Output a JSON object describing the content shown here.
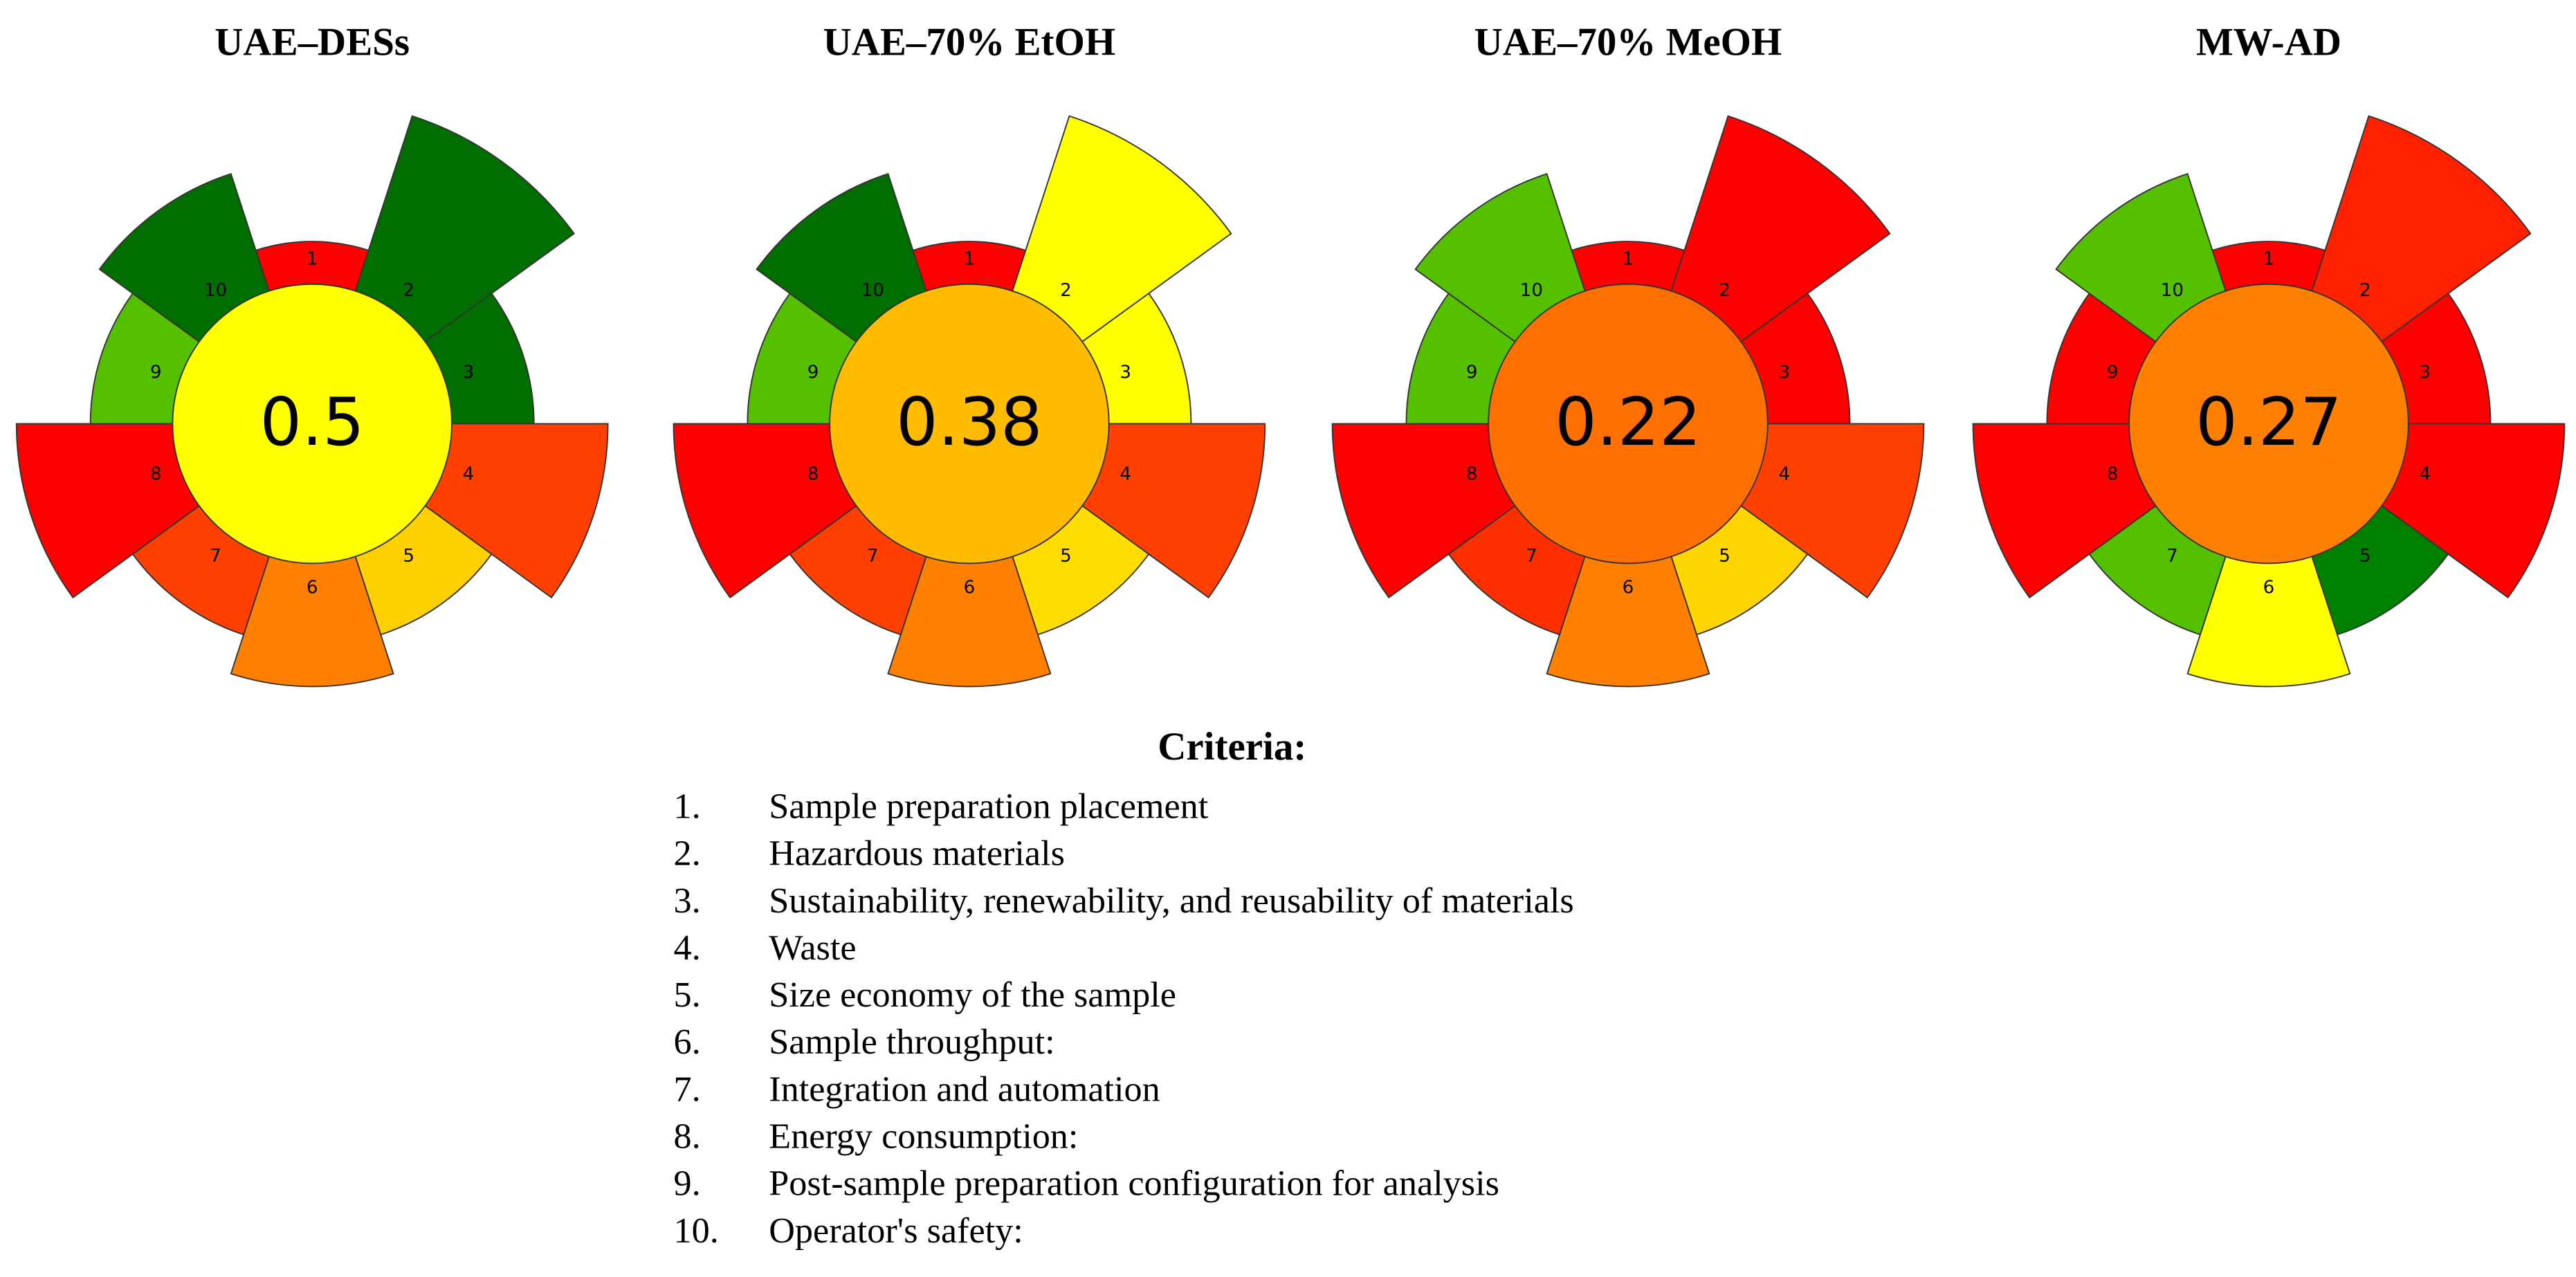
{
  "panels": [
    {
      "title": "UAE–DESs",
      "score": 0.5,
      "center_color": "#ffff00",
      "segments": [
        {
          "label": "1",
          "color": "#ff0000"
        },
        {
          "label": "2",
          "color": "#006e00"
        },
        {
          "label": "3",
          "color": "#006e00"
        },
        {
          "label": "4",
          "color": "#ff4000"
        },
        {
          "label": "5",
          "color": "#ffd000"
        },
        {
          "label": "6",
          "color": "#ff8000"
        },
        {
          "label": "7",
          "color": "#ff4000"
        },
        {
          "label": "8",
          "color": "#ff0000"
        },
        {
          "label": "9",
          "color": "#55c000"
        },
        {
          "label": "10",
          "color": "#006e00"
        }
      ]
    },
    {
      "title": "UAE–70% EtOH",
      "score": 0.38,
      "center_color": "#ffbb00",
      "segments": [
        {
          "label": "1",
          "color": "#ff0000"
        },
        {
          "label": "2",
          "color": "#ffff00"
        },
        {
          "label": "3",
          "color": "#ffff00"
        },
        {
          "label": "4",
          "color": "#ff4000"
        },
        {
          "label": "5",
          "color": "#ffdd00"
        },
        {
          "label": "6",
          "color": "#ff8000"
        },
        {
          "label": "7",
          "color": "#ff4000"
        },
        {
          "label": "8",
          "color": "#ff0000"
        },
        {
          "label": "9",
          "color": "#55c000"
        },
        {
          "label": "10",
          "color": "#006e00"
        }
      ]
    },
    {
      "title": "UAE–70% MeOH",
      "score": 0.22,
      "center_color": "#ff7000",
      "segments": [
        {
          "label": "1",
          "color": "#ff0000"
        },
        {
          "label": "2",
          "color": "#ff0000"
        },
        {
          "label": "3",
          "color": "#ff0000"
        },
        {
          "label": "4",
          "color": "#ff4000"
        },
        {
          "label": "5",
          "color": "#ffd500"
        },
        {
          "label": "6",
          "color": "#ff8000"
        },
        {
          "label": "7",
          "color": "#ff3000"
        },
        {
          "label": "8",
          "color": "#ff0000"
        },
        {
          "label": "9",
          "color": "#55c000"
        },
        {
          "label": "10",
          "color": "#55c000"
        }
      ]
    },
    {
      "title": "MW-AD",
      "score": 0.27,
      "center_color": "#ff7f00",
      "segments": [
        {
          "label": "1",
          "color": "#ff0000"
        },
        {
          "label": "2",
          "color": "#ff2000"
        },
        {
          "label": "3",
          "color": "#ff0000"
        },
        {
          "label": "4",
          "color": "#ff0000"
        },
        {
          "label": "5",
          "color": "#008000"
        },
        {
          "label": "6",
          "color": "#ffff00"
        },
        {
          "label": "7",
          "color": "#55c000"
        },
        {
          "label": "8",
          "color": "#ff0000"
        },
        {
          "label": "9",
          "color": "#ff0000"
        },
        {
          "label": "10",
          "color": "#55c000"
        }
      ]
    }
  ],
  "criteria": {
    "title": "Criteria:",
    "items": [
      {
        "number": "1.",
        "text": "Sample preparation placement"
      },
      {
        "number": "2.",
        "text": "Hazardous materials"
      },
      {
        "number": "3.",
        "text": "Sustainability, renewability, and reusability of materials"
      },
      {
        "number": "4.",
        "text": "Waste"
      },
      {
        "number": "5.",
        "text": "Size economy of the sample"
      },
      {
        "number": "6.",
        "text": "Sample throughput:"
      },
      {
        "number": "7.",
        "text": "Integration and automation"
      },
      {
        "number": "8.",
        "text": "Energy consumption:"
      },
      {
        "number": "9.",
        "text": "Post-sample preparation configuration for analysis"
      },
      {
        "number": "10.",
        "text": "Operator's safety:"
      }
    ]
  }
}
